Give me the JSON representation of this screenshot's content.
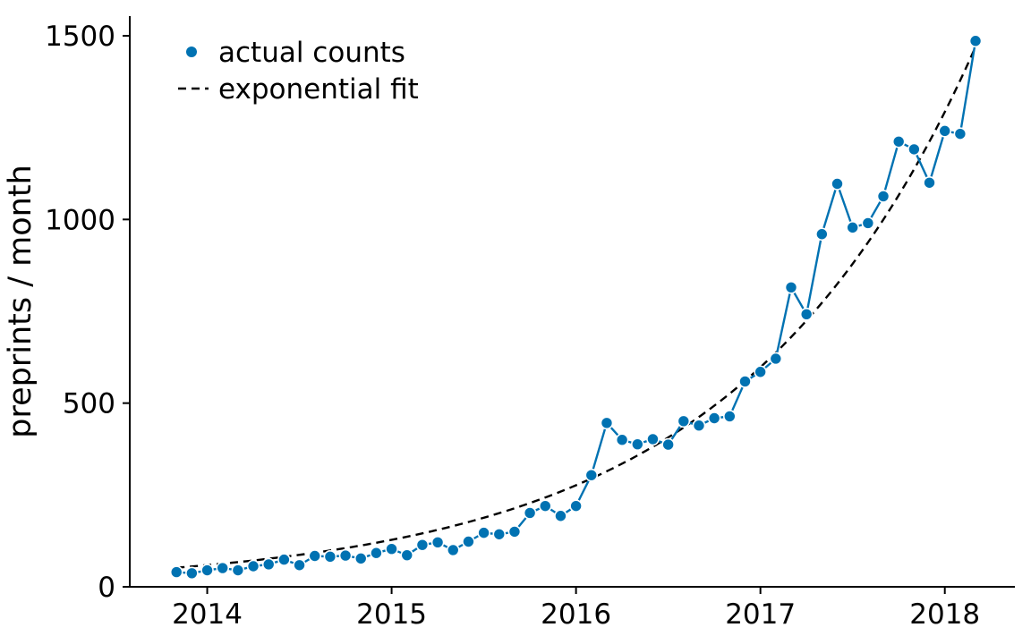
{
  "chart_data": {
    "type": "line",
    "title": "",
    "xlabel": "",
    "ylabel": "preprints / month",
    "xlim": [
      2013.58,
      2018.38
    ],
    "ylim": [
      0,
      1500
    ],
    "xticks": [
      2014,
      2015,
      2016,
      2017,
      2018
    ],
    "xtick_labels": [
      "2014",
      "2015",
      "2016",
      "2017",
      "2018"
    ],
    "yticks": [
      0,
      500,
      1000,
      1500
    ],
    "ytick_labels": [
      "0",
      "500",
      "1000",
      "1500"
    ],
    "grid": false,
    "legend_position": "top-left",
    "series": [
      {
        "name": "actual counts",
        "style": "line-with-markers",
        "color": "#0072b2",
        "x": [
          "2013-11",
          "2013-12",
          "2014-01",
          "2014-02",
          "2014-03",
          "2014-04",
          "2014-05",
          "2014-06",
          "2014-07",
          "2014-08",
          "2014-09",
          "2014-10",
          "2014-11",
          "2014-12",
          "2015-01",
          "2015-02",
          "2015-03",
          "2015-04",
          "2015-05",
          "2015-06",
          "2015-07",
          "2015-08",
          "2015-09",
          "2015-10",
          "2015-11",
          "2015-12",
          "2016-01",
          "2016-02",
          "2016-03",
          "2016-04",
          "2016-05",
          "2016-06",
          "2016-07",
          "2016-08",
          "2016-09",
          "2016-10",
          "2016-11",
          "2016-12",
          "2017-01",
          "2017-02",
          "2017-03",
          "2017-04",
          "2017-05",
          "2017-06",
          "2017-07",
          "2017-08",
          "2017-09",
          "2017-10",
          "2017-11",
          "2017-12",
          "2018-01",
          "2018-02",
          "2018-03"
        ],
        "values": [
          40,
          37,
          45,
          51,
          45,
          56,
          61,
          74,
          59,
          84,
          82,
          85,
          77,
          92,
          103,
          86,
          114,
          121,
          100,
          123,
          147,
          143,
          150,
          201,
          220,
          193,
          220,
          304,
          446,
          400,
          388,
          402,
          387,
          451,
          439,
          459,
          464,
          559,
          585,
          621,
          815,
          742,
          960,
          1097,
          978,
          990,
          1063,
          1212,
          1191,
          1100,
          1241,
          1233,
          1486
        ]
      },
      {
        "name": "exponential fit",
        "style": "dashed",
        "color": "#000000",
        "model": "exponential",
        "x_start": "2013-11",
        "x_end": "2018-03",
        "y_start": 52,
        "y_end": 1470
      }
    ]
  }
}
